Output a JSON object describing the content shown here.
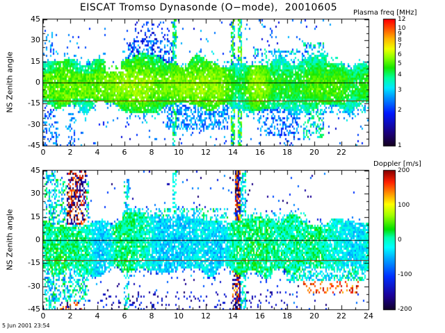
{
  "title": "EISCAT Tromso Dynasonde (O−mode),  20010605",
  "timestamp": "5 Jun 2001 23:54",
  "colors": {
    "background": "#ffffff",
    "text": "#000000",
    "axis": "#000000"
  },
  "chart_data": [
    {
      "type": "heatmap",
      "name": "plasma-frequency-panel",
      "ylabel": "NS Zenith angle",
      "xlim": [
        0,
        24
      ],
      "ylim": [
        -45,
        45
      ],
      "xticks": [
        0,
        2,
        4,
        6,
        8,
        10,
        12,
        14,
        16,
        18,
        20,
        22
      ],
      "yticks": [
        45,
        30,
        15,
        0,
        -15,
        -30,
        -45
      ],
      "colorbar": {
        "title": "Plasma freq [MHz]",
        "scale": "log",
        "min": 1,
        "max": 12,
        "ticks": [
          12,
          10,
          9,
          8,
          7,
          6,
          5,
          4,
          3,
          2,
          1
        ],
        "stops": [
          [
            0,
            "#14001e"
          ],
          [
            0.1,
            "#1c0078"
          ],
          [
            0.26,
            "#0018ff"
          ],
          [
            0.38,
            "#0090ff"
          ],
          [
            0.46,
            "#00e8ff"
          ],
          [
            0.54,
            "#00ff9c"
          ],
          [
            0.62,
            "#16e800"
          ],
          [
            0.7,
            "#8cff00"
          ],
          [
            0.77,
            "#f0ff00"
          ],
          [
            0.85,
            "#ffb400"
          ],
          [
            0.93,
            "#ff5000"
          ],
          [
            1,
            "#ff0000"
          ]
        ]
      },
      "reference_lines": [
        {
          "y": 0,
          "color": "#000000"
        },
        {
          "y": -13,
          "color": "#8b1a00"
        }
      ],
      "summary": "Dense echo band of 3-6 MHz plasma frequencies between about -20 and +15 deg zenith angle all day; yellow-green core near 0 deg; blue 1.5-3 MHz scatter toward +/-45 deg; tall echo columns near 9.6 h, 14 h and 14.5 h; sparse gap near 5 h.",
      "pattern": {
        "seed": 7,
        "band": {
          "top_base": 9,
          "top_amp": 12,
          "bot_base": -13,
          "bot_amp": 10,
          "center": -2,
          "flat": 5,
          "grad": 0.1,
          "jitter": 1.2,
          "v_base": 4.3,
          "v_amp": 1.6
        },
        "core_density": 0.94,
        "fringe": 7,
        "fringe_density": 0.3,
        "far_density": 0.03,
        "edge_v": [
          2.2,
          3.4
        ],
        "scatter_v": [
          1.6,
          3.0
        ],
        "blobs": [
          {
            "t": [
              0.0,
              4.2
            ],
            "y": [
              -12,
              6
            ],
            "d": 0.96,
            "v": [
              4.5,
              6.0
            ]
          },
          {
            "t": [
              0.0,
              1.1
            ],
            "y": [
              -45,
              -16
            ],
            "d": 0.3,
            "v": [
              1.8,
              3.0
            ]
          },
          {
            "t": [
              0.1,
              0.8
            ],
            "y": [
              14,
              38
            ],
            "d": 0.22,
            "v": [
              2.0,
              3.2
            ]
          },
          {
            "t": [
              1.8,
              2.4
            ],
            "y": [
              -45,
              -22
            ],
            "d": 0.35,
            "v": [
              2.0,
              3.0
            ]
          },
          {
            "t": [
              6.3,
              9.7
            ],
            "y": [
              9,
              30
            ],
            "d": 0.5,
            "v": [
              1.5,
              3.0
            ]
          },
          {
            "t": [
              6.8,
              9.7
            ],
            "y": [
              26,
              43
            ],
            "d": 0.18,
            "v": [
              1.4,
              2.4
            ]
          },
          {
            "t": [
              9.0,
              13.7
            ],
            "y": [
              -33,
              -14
            ],
            "d": 0.55,
            "v": [
              2.0,
              3.2
            ]
          },
          {
            "t": [
              10.2,
              13.2
            ],
            "y": [
              -9,
              4
            ],
            "d": 0.95,
            "v": [
              5.0,
              6.3
            ]
          },
          {
            "t": [
              9.55,
              9.8
            ],
            "y": [
              -45,
              45
            ],
            "d": 0.65,
            "v": [
              2.4,
              5.0
            ]
          },
          {
            "t": [
              13.85,
              14.15
            ],
            "y": [
              -45,
              45
            ],
            "d": 0.7,
            "v": [
              2.0,
              6.0
            ]
          },
          {
            "t": [
              14.4,
              14.65
            ],
            "y": [
              -45,
              45
            ],
            "d": 0.8,
            "v": [
              2.0,
              6.0
            ]
          },
          {
            "t": [
              15.8,
              18.9
            ],
            "y": [
              -38,
              -15
            ],
            "d": 0.4,
            "v": [
              1.8,
              3.0
            ]
          },
          {
            "t": [
              15.5,
              19.3
            ],
            "y": [
              9,
              24
            ],
            "d": 0.3,
            "v": [
              2.0,
              4.0
            ]
          },
          {
            "t": [
              19.2,
              20.7
            ],
            "y": [
              -40,
              28
            ],
            "d": 0.45,
            "v": [
              2.0,
              4.5
            ]
          },
          {
            "t": [
              21.2,
              23.8
            ],
            "y": [
              -22,
              12
            ],
            "d": 0.4,
            "v": [
              2.2,
              3.8
            ]
          },
          {
            "t": [
              17.4,
              18.6
            ],
            "y": [
              -45,
              -30
            ],
            "d": 0.25,
            "v": [
              1.5,
              2.6
            ]
          }
        ],
        "gaps": [
          {
            "t": [
              4.6,
              5.7
            ],
            "y": [
              8,
              45
            ],
            "f": 0.15
          },
          {
            "t": [
              4.8,
              5.5
            ],
            "y": [
              -45,
              -18
            ],
            "f": 0.25
          },
          {
            "t": [
              20.9,
              23.9
            ],
            "y": [
              14,
              45
            ],
            "f": 0.25
          },
          {
            "t": [
              2.8,
              4.4
            ],
            "y": [
              18,
              45
            ],
            "f": 0.4
          }
        ]
      }
    },
    {
      "type": "heatmap",
      "name": "doppler-panel",
      "ylabel": "NS Zenith angle",
      "xlim": [
        0,
        24
      ],
      "ylim": [
        -45,
        45
      ],
      "xticks": [
        0,
        2,
        4,
        6,
        8,
        10,
        12,
        14,
        16,
        18,
        20,
        22,
        24
      ],
      "yticks": [
        45,
        30,
        15,
        0,
        -15,
        -30,
        -45
      ],
      "colorbar": {
        "title": "Doppler [m/s]",
        "scale": "linear",
        "min": -200,
        "max": 200,
        "ticks": [
          200,
          100,
          0,
          -100,
          -200
        ],
        "stops": [
          [
            0,
            "#10002a"
          ],
          [
            0.1,
            "#1c0096"
          ],
          [
            0.24,
            "#0030ff"
          ],
          [
            0.36,
            "#00a0ff"
          ],
          [
            0.45,
            "#00ffff"
          ],
          [
            0.52,
            "#00ffb0"
          ],
          [
            0.58,
            "#00e000"
          ],
          [
            0.68,
            "#a0ff00"
          ],
          [
            0.76,
            "#ffff00"
          ],
          [
            0.84,
            "#ff9000"
          ],
          [
            0.92,
            "#ff2000"
          ],
          [
            1,
            "#8c0000"
          ]
        ]
      },
      "reference_lines": [
        {
          "y": 0,
          "color": "#000000"
        },
        {
          "y": -13,
          "color": "#8b1a00"
        }
      ],
      "summary": "Doppler velocities mostly between -60 and +30 m/s (cyan-green) inside the echo band; strong mixed +/-200 m/s (dark red/black) bursts near 2-3 h above +10 deg and in the 14.2-14.6 h column; scattered red +100..+200 m/s points at 19-23 h below -10 deg; blue negative scatter near band edges.",
      "pattern": {
        "seed": 19,
        "band": {
          "top_base": 7,
          "top_amp": 11,
          "bot_base": -16,
          "bot_amp": 9,
          "center": -4,
          "flat": 40,
          "grad": 0,
          "jitter": 60,
          "v_base": -40,
          "v_amp": 60
        },
        "core_density": 0.9,
        "fringe": 6,
        "fringe_density": 0.25,
        "far_density": 0.02,
        "edge_v": [
          -130,
          -40
        ],
        "scatter_v": [
          -180,
          -60
        ],
        "blobs": [
          {
            "t": [
              0.1,
              3.4
            ],
            "y": [
              -40,
              40
            ],
            "d": 0.45,
            "v": [
              -80,
              40
            ]
          },
          {
            "t": [
              0.25,
              0.95
            ],
            "y": [
              -45,
              45
            ],
            "d": 0.5,
            "v": [
              -90,
              40
            ]
          },
          {
            "t": [
              0.15,
              0.5
            ],
            "y": [
              -45,
              0
            ],
            "d": 0.3,
            "mode": "extreme",
            "ext": [
              120,
              200
            ]
          },
          {
            "t": [
              1.7,
              3.2
            ],
            "y": [
              10,
              45
            ],
            "d": 0.5,
            "mode": "extreme",
            "ext": [
              130,
              200
            ]
          },
          {
            "t": [
              1.2,
              2.2
            ],
            "y": [
              -45,
              -8
            ],
            "d": 0.35,
            "mode": "extreme",
            "ext": [
              130,
              200
            ]
          },
          {
            "t": [
              2.3,
              3.3
            ],
            "y": [
              -45,
              -25
            ],
            "d": 0.3,
            "mode": "extreme",
            "ext": [
              120,
              200
            ]
          },
          {
            "t": [
              5.8,
              13.6
            ],
            "y": [
              7,
              21
            ],
            "d": 0.45,
            "v": [
              -70,
              30
            ]
          },
          {
            "t": [
              6.0,
              6.35
            ],
            "y": [
              -45,
              40
            ],
            "d": 0.5,
            "v": [
              -80,
              30
            ]
          },
          {
            "t": [
              9.55,
              9.8
            ],
            "y": [
              -5,
              45
            ],
            "d": 0.55,
            "v": [
              -70,
              40
            ]
          },
          {
            "t": [
              4.0,
              18.0
            ],
            "y": [
              -45,
              -33
            ],
            "d": 0.1,
            "v": [
              -180,
              -90
            ]
          },
          {
            "t": [
              13.9,
              14.15
            ],
            "y": [
              -45,
              5
            ],
            "d": 0.5,
            "mode": "extreme",
            "ext": [
              120,
              200
            ]
          },
          {
            "t": [
              14.15,
              14.6
            ],
            "y": [
              -45,
              45
            ],
            "d": 0.85,
            "mode": "extreme",
            "ext": [
              100,
              200
            ]
          },
          {
            "t": [
              14.6,
              14.95
            ],
            "y": [
              -45,
              45
            ],
            "d": 0.55,
            "v": [
              -70,
              30
            ]
          },
          {
            "t": [
              15.0,
              19.5
            ],
            "y": [
              6,
              18
            ],
            "d": 0.3,
            "v": [
              -60,
              30
            ]
          },
          {
            "t": [
              18.0,
              23.8
            ],
            "y": [
              -26,
              10
            ],
            "d": 0.55,
            "v": [
              -60,
              30
            ]
          },
          {
            "t": [
              19.2,
              23.4
            ],
            "y": [
              -34,
              -10
            ],
            "d": 0.25,
            "v": [
              120,
              200
            ]
          }
        ],
        "gaps": [
          {
            "t": [
              3.5,
              5.8
            ],
            "y": [
              12,
              45
            ],
            "f": 0.3
          },
          {
            "t": [
              20.6,
              23.9
            ],
            "y": [
              14,
              45
            ],
            "f": 0.2
          },
          {
            "t": [
              15.3,
              18.2
            ],
            "y": [
              26,
              45
            ],
            "f": 0.4
          },
          {
            "t": [
              6.5,
              9.3
            ],
            "y": [
              24,
              45
            ],
            "f": 0.5
          }
        ]
      }
    }
  ]
}
